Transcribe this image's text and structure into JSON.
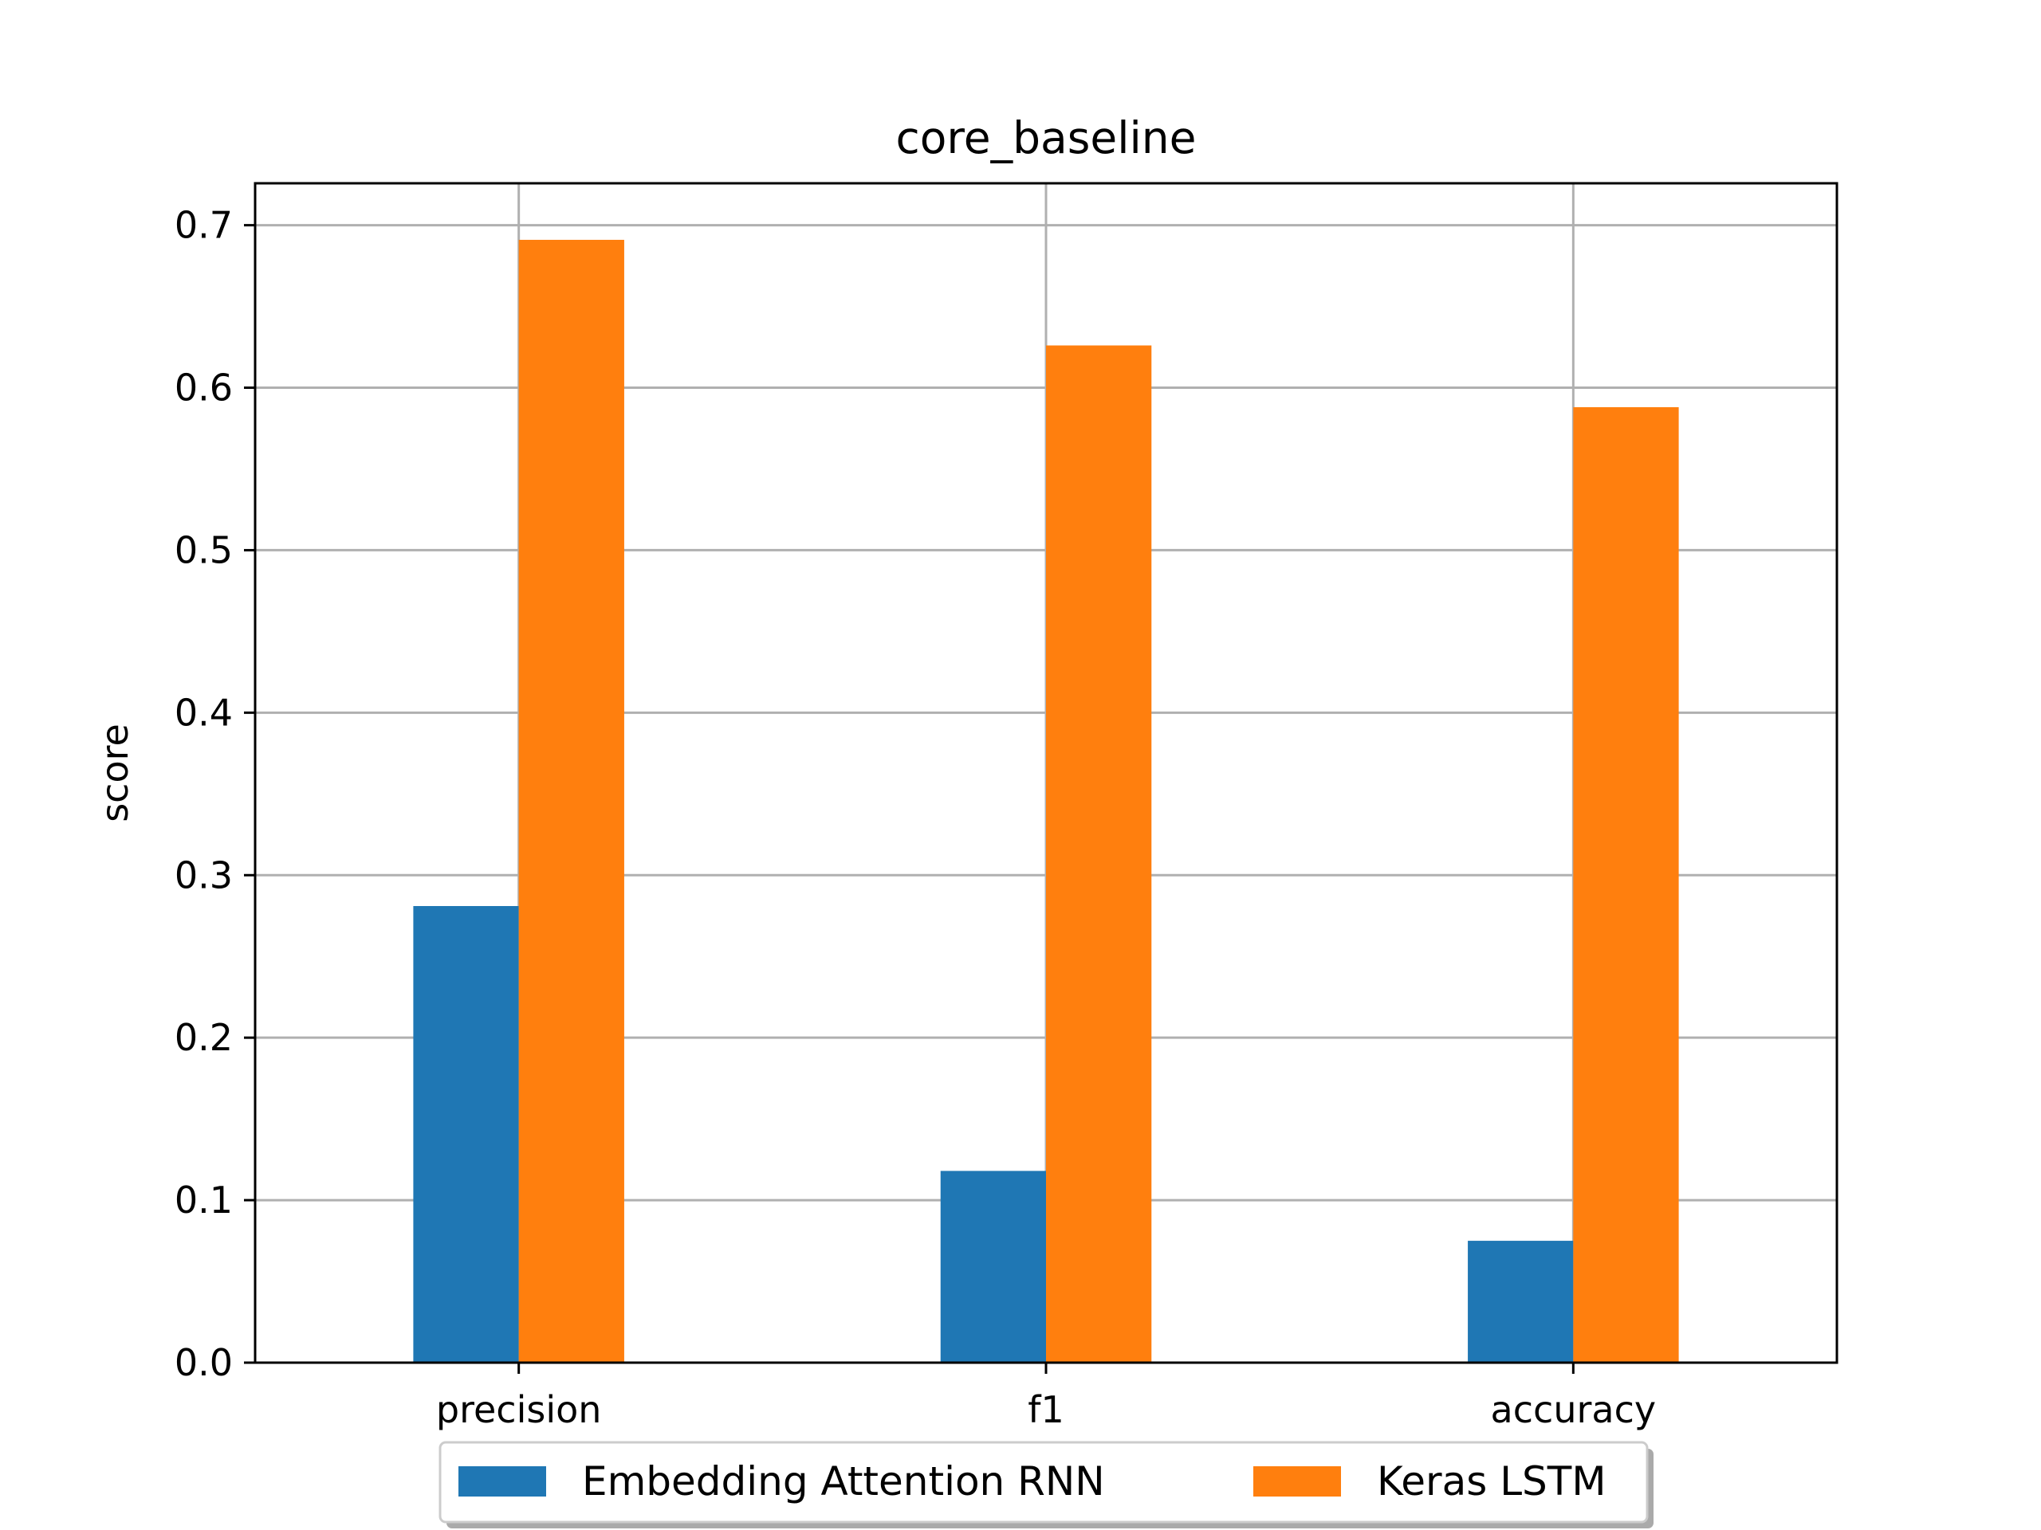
{
  "chart_data": {
    "type": "bar",
    "title": "core_baseline",
    "xlabel": "",
    "ylabel": "score",
    "categories": [
      "precision",
      "f1",
      "accuracy"
    ],
    "series": [
      {
        "name": "Embedding Attention RNN",
        "color": "#1f77b4",
        "values": [
          0.281,
          0.118,
          0.075
        ]
      },
      {
        "name": "Keras LSTM",
        "color": "#ff7f0e",
        "values": [
          0.691,
          0.626,
          0.588
        ]
      }
    ],
    "ylim": [
      0,
      0.7258
    ],
    "yticks": [
      "0.0",
      "0.1",
      "0.2",
      "0.3",
      "0.4",
      "0.5",
      "0.6",
      "0.7"
    ],
    "grid": true,
    "legend": "bottom-center"
  }
}
